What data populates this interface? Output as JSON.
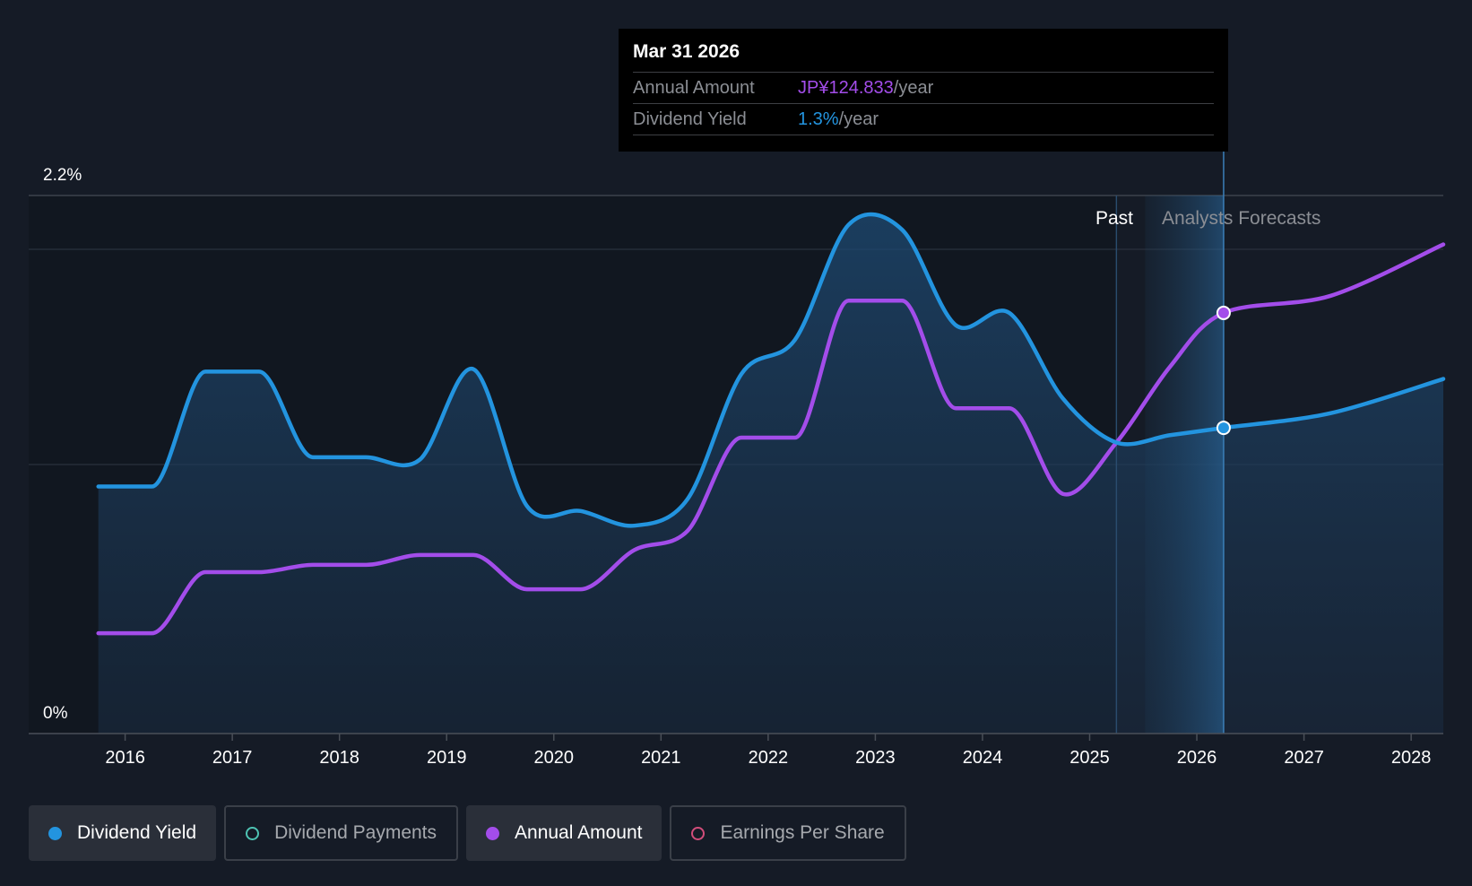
{
  "tooltip": {
    "date": "Mar 31 2026",
    "annual_amount_label": "Annual Amount",
    "annual_amount_value": "JP¥124.833",
    "annual_amount_unit": "/year",
    "yield_label": "Dividend Yield",
    "yield_value": "1.3%",
    "yield_unit": "/year"
  },
  "regions": {
    "past": "Past",
    "forecast": "Analysts Forecasts"
  },
  "legend": [
    {
      "label": "Dividend Yield",
      "color": "#2394df",
      "active": true,
      "filled": true
    },
    {
      "label": "Dividend Payments",
      "color": "#4ec3b3",
      "active": false,
      "filled": false
    },
    {
      "label": "Annual Amount",
      "color": "#a34dea",
      "active": true,
      "filled": true
    },
    {
      "label": "Earnings Per Share",
      "color": "#d14d7a",
      "active": false,
      "filled": false
    }
  ],
  "chart_data": {
    "type": "line",
    "y_tick_labels": [
      "2.2%",
      "0%"
    ],
    "ylim": [
      0,
      2.2
    ],
    "x_tick_labels": [
      "2016",
      "2017",
      "2018",
      "2019",
      "2020",
      "2021",
      "2022",
      "2023",
      "2024",
      "2025",
      "2026",
      "2027",
      "2028"
    ],
    "xlim": [
      2015.1,
      2028.3
    ],
    "past_until": 2025.25,
    "highlight_date": 2026.25,
    "series": [
      {
        "name": "Dividend Yield",
        "color": "#2394df",
        "area": true,
        "points": [
          [
            2015.75,
            1.01
          ],
          [
            2016.25,
            1.01
          ],
          [
            2016.75,
            1.48
          ],
          [
            2017.25,
            1.48
          ],
          [
            2017.75,
            1.13
          ],
          [
            2018.25,
            1.13
          ],
          [
            2018.75,
            1.12
          ],
          [
            2019.25,
            1.49
          ],
          [
            2019.75,
            0.93
          ],
          [
            2020.25,
            0.91
          ],
          [
            2020.75,
            0.85
          ],
          [
            2021.25,
            0.96
          ],
          [
            2021.75,
            1.47
          ],
          [
            2022.25,
            1.61
          ],
          [
            2022.75,
            2.08
          ],
          [
            2023.25,
            2.06
          ],
          [
            2023.75,
            1.67
          ],
          [
            2024.25,
            1.72
          ],
          [
            2024.75,
            1.37
          ],
          [
            2025.25,
            1.19
          ],
          [
            2025.75,
            1.22
          ],
          [
            2026.25,
            1.25
          ],
          [
            2027.25,
            1.31
          ],
          [
            2028.3,
            1.45
          ]
        ]
      },
      {
        "name": "Annual Amount",
        "color": "#a34dea",
        "area": false,
        "points": [
          [
            2015.75,
            0.41
          ],
          [
            2016.25,
            0.41
          ],
          [
            2016.75,
            0.66
          ],
          [
            2017.25,
            0.66
          ],
          [
            2017.75,
            0.69
          ],
          [
            2018.25,
            0.69
          ],
          [
            2018.75,
            0.73
          ],
          [
            2019.25,
            0.73
          ],
          [
            2019.75,
            0.59
          ],
          [
            2020.25,
            0.59
          ],
          [
            2020.75,
            0.75
          ],
          [
            2021.25,
            0.83
          ],
          [
            2021.75,
            1.21
          ],
          [
            2022.25,
            1.21
          ],
          [
            2022.75,
            1.77
          ],
          [
            2023.25,
            1.77
          ],
          [
            2023.75,
            1.33
          ],
          [
            2024.25,
            1.33
          ],
          [
            2024.75,
            0.98
          ],
          [
            2025.25,
            1.19
          ],
          [
            2025.75,
            1.5
          ],
          [
            2026.25,
            1.72
          ],
          [
            2027.25,
            1.79
          ],
          [
            2028.3,
            2.0
          ]
        ]
      }
    ]
  }
}
